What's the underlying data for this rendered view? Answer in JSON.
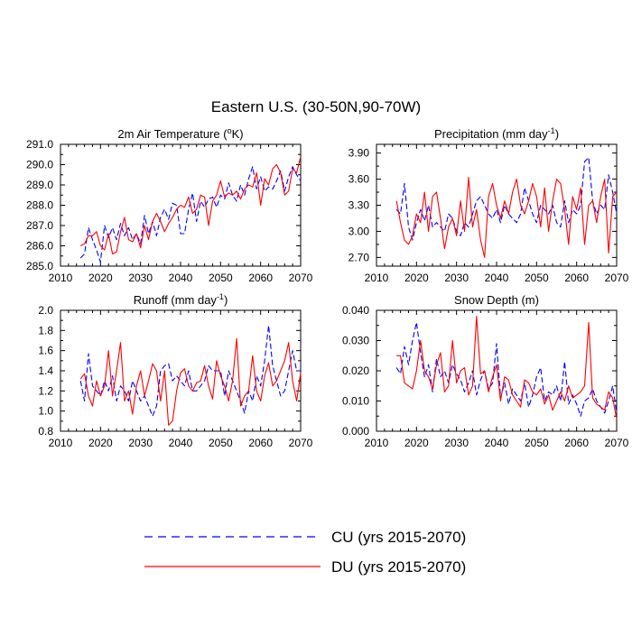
{
  "title": "Eastern U.S. (30-50N,90-70W)",
  "colors": {
    "cu": "#0000ff",
    "du": "#ff0000",
    "axis": "#000000"
  },
  "legend": {
    "cu_label": "CU (yrs 2015-2070)",
    "du_label": "DU (yrs 2015-2070)"
  },
  "chart_data": [
    {
      "id": "air-temp",
      "type": "line",
      "title": "2m Air Temperature (°K)",
      "title_parts": [
        "2m Air Temperature (",
        "o",
        "K)"
      ],
      "xlim": [
        2010,
        2070
      ],
      "ylim": [
        285.0,
        291.0
      ],
      "xticks": [
        2010,
        2020,
        2030,
        2040,
        2050,
        2060,
        2070
      ],
      "yticks": [
        285.0,
        286.0,
        287.0,
        288.0,
        289.0,
        290.0,
        291.0
      ],
      "ytick_labels": [
        "285.0",
        "286.0",
        "287.0",
        "288.0",
        "289.0",
        "290.0",
        "291.0"
      ],
      "x": [
        2015,
        2016,
        2017,
        2018,
        2019,
        2020,
        2021,
        2022,
        2023,
        2024,
        2025,
        2026,
        2027,
        2028,
        2029,
        2030,
        2031,
        2032,
        2033,
        2034,
        2035,
        2036,
        2037,
        2038,
        2039,
        2040,
        2041,
        2042,
        2043,
        2044,
        2045,
        2046,
        2047,
        2048,
        2049,
        2050,
        2051,
        2052,
        2053,
        2054,
        2055,
        2056,
        2057,
        2058,
        2059,
        2060,
        2061,
        2062,
        2063,
        2064,
        2065,
        2066,
        2067,
        2068,
        2069,
        2070
      ],
      "series": [
        {
          "name": "CU",
          "values": [
            285.4,
            285.6,
            286.9,
            286.3,
            285.8,
            285.2,
            287.0,
            286.4,
            286.9,
            286.3,
            287.1,
            286.5,
            286.9,
            286.3,
            286.6,
            286.1,
            287.5,
            286.6,
            287.2,
            286.5,
            287.4,
            287.8,
            287.3,
            288.1,
            288.0,
            286.6,
            286.6,
            287.8,
            288.6,
            287.2,
            288.2,
            287.9,
            288.3,
            288.4,
            287.9,
            288.5,
            288.3,
            289.1,
            288.5,
            288.2,
            289.0,
            288.5,
            289.3,
            289.9,
            288.8,
            289.4,
            288.7,
            288.9,
            288.8,
            289.2,
            289.7,
            288.7,
            289.4,
            289.9,
            289.5,
            289.2
          ]
        },
        {
          "name": "DU",
          "values": [
            286.0,
            286.1,
            286.5,
            286.5,
            286.7,
            286.0,
            285.8,
            286.6,
            285.6,
            285.7,
            286.7,
            287.4,
            286.3,
            286.2,
            286.6,
            285.9,
            287.0,
            286.3,
            287.2,
            287.6,
            287.2,
            286.7,
            287.1,
            287.4,
            287.8,
            288.0,
            287.9,
            288.4,
            287.6,
            287.8,
            288.5,
            288.4,
            287.0,
            288.2,
            288.5,
            289.2,
            288.4,
            288.6,
            288.5,
            288.7,
            288.3,
            288.8,
            289.0,
            288.9,
            289.6,
            288.0,
            289.3,
            289.0,
            289.8,
            290.0,
            289.6,
            288.5,
            288.7,
            289.8,
            289.6,
            290.4
          ]
        }
      ]
    },
    {
      "id": "precipitation",
      "type": "line",
      "title": "Precipitation (mm day-1)",
      "title_parts": [
        "Precipitation (mm day",
        "-1",
        ")"
      ],
      "xlim": [
        2010,
        2070
      ],
      "ylim": [
        2.6,
        4.0
      ],
      "xticks": [
        2010,
        2020,
        2030,
        2040,
        2050,
        2060,
        2070
      ],
      "yticks": [
        2.7,
        3.0,
        3.3,
        3.6,
        3.9
      ],
      "ytick_labels": [
        "2.70",
        "3.00",
        "3.30",
        "3.60",
        "3.90"
      ],
      "x": [
        2015,
        2016,
        2017,
        2018,
        2019,
        2020,
        2021,
        2022,
        2023,
        2024,
        2025,
        2026,
        2027,
        2028,
        2029,
        2030,
        2031,
        2032,
        2033,
        2034,
        2035,
        2036,
        2037,
        2038,
        2039,
        2040,
        2041,
        2042,
        2043,
        2044,
        2045,
        2046,
        2047,
        2048,
        2049,
        2050,
        2051,
        2052,
        2053,
        2054,
        2055,
        2056,
        2057,
        2058,
        2059,
        2060,
        2061,
        2062,
        2063,
        2064,
        2065,
        2066,
        2067,
        2068,
        2069,
        2070
      ],
      "series": [
        {
          "name": "CU",
          "values": [
            3.25,
            3.2,
            3.55,
            3.05,
            2.9,
            3.1,
            3.25,
            3.12,
            3.3,
            3.05,
            3.1,
            3.05,
            3.0,
            3.2,
            3.15,
            3.0,
            2.95,
            3.1,
            3.05,
            3.2,
            3.35,
            3.4,
            3.3,
            3.2,
            3.15,
            3.25,
            3.1,
            3.3,
            3.2,
            3.15,
            3.1,
            3.2,
            3.5,
            3.35,
            3.2,
            3.1,
            3.3,
            3.25,
            3.2,
            3.3,
            3.1,
            3.05,
            3.35,
            3.1,
            3.25,
            3.2,
            3.3,
            3.8,
            3.85,
            3.35,
            3.2,
            3.3,
            3.25,
            3.65,
            3.45,
            3.2
          ]
        },
        {
          "name": "DU",
          "values": [
            3.35,
            3.1,
            2.9,
            2.85,
            2.95,
            3.2,
            3.1,
            3.45,
            3.0,
            3.4,
            3.45,
            3.15,
            2.8,
            3.05,
            3.15,
            2.95,
            3.35,
            3.0,
            3.62,
            3.05,
            3.25,
            2.9,
            2.7,
            3.4,
            3.55,
            3.3,
            3.15,
            3.35,
            3.2,
            3.45,
            3.6,
            3.3,
            3.2,
            3.35,
            3.55,
            3.4,
            3.05,
            3.5,
            3.0,
            3.35,
            3.6,
            3.55,
            3.25,
            2.85,
            3.4,
            3.25,
            3.5,
            2.85,
            3.3,
            3.35,
            3.1,
            3.4,
            3.6,
            2.75,
            3.4,
            3.45
          ]
        }
      ]
    },
    {
      "id": "runoff",
      "type": "line",
      "title": "Runoff (mm day-1)",
      "title_parts": [
        "Runoff (mm day",
        "-1",
        ")"
      ],
      "xlim": [
        2010,
        2070
      ],
      "ylim": [
        0.8,
        2.0
      ],
      "xticks": [
        2010,
        2020,
        2030,
        2040,
        2050,
        2060,
        2070
      ],
      "yticks": [
        0.8,
        1.0,
        1.2,
        1.4,
        1.6,
        1.8,
        2.0
      ],
      "ytick_labels": [
        "0.8",
        "1.0",
        "1.2",
        "1.4",
        "1.6",
        "1.8",
        "2.0"
      ],
      "x": [
        2015,
        2016,
        2017,
        2018,
        2019,
        2020,
        2021,
        2022,
        2023,
        2024,
        2025,
        2026,
        2027,
        2028,
        2029,
        2030,
        2031,
        2032,
        2033,
        2034,
        2035,
        2036,
        2037,
        2038,
        2039,
        2040,
        2041,
        2042,
        2043,
        2044,
        2045,
        2046,
        2047,
        2048,
        2049,
        2050,
        2051,
        2052,
        2053,
        2054,
        2055,
        2056,
        2057,
        2058,
        2059,
        2060,
        2061,
        2062,
        2063,
        2064,
        2065,
        2066,
        2067,
        2068,
        2069,
        2070
      ],
      "series": [
        {
          "name": "CU",
          "values": [
            1.3,
            1.1,
            1.57,
            1.25,
            1.2,
            1.15,
            1.3,
            1.2,
            1.35,
            1.1,
            1.25,
            1.2,
            1.1,
            1.3,
            1.2,
            1.1,
            1.15,
            1.05,
            0.95,
            1.05,
            1.4,
            1.45,
            1.47,
            1.3,
            1.35,
            1.3,
            1.25,
            1.4,
            1.2,
            1.2,
            1.25,
            1.3,
            1.45,
            1.4,
            1.4,
            1.4,
            1.15,
            1.4,
            1.3,
            1.2,
            1.1,
            0.98,
            1.2,
            1.1,
            1.35,
            1.25,
            1.5,
            1.85,
            1.45,
            1.3,
            1.15,
            1.2,
            1.4,
            1.6,
            1.4,
            1.4
          ]
        },
        {
          "name": "DU",
          "values": [
            1.32,
            1.37,
            1.15,
            1.05,
            1.3,
            1.15,
            1.25,
            1.6,
            1.15,
            1.4,
            1.68,
            1.1,
            1.2,
            0.97,
            1.25,
            1.4,
            1.15,
            1.3,
            1.47,
            1.4,
            1.1,
            1.4,
            0.86,
            0.9,
            1.2,
            1.38,
            1.42,
            1.25,
            1.2,
            1.28,
            1.3,
            1.45,
            1.25,
            1.12,
            1.5,
            1.35,
            1.25,
            1.1,
            1.3,
            1.72,
            1.05,
            1.15,
            1.2,
            1.55,
            1.2,
            1.1,
            1.35,
            1.48,
            1.25,
            1.3,
            1.4,
            1.5,
            1.68,
            1.3,
            1.1,
            1.38
          ]
        }
      ]
    },
    {
      "id": "snow-depth",
      "type": "line",
      "title": "Snow Depth (m)",
      "title_parts": [
        "Snow Depth (m)",
        "",
        ""
      ],
      "xlim": [
        2010,
        2070
      ],
      "ylim": [
        0.0,
        0.04
      ],
      "xticks": [
        2010,
        2020,
        2030,
        2040,
        2050,
        2060,
        2070
      ],
      "yticks": [
        0.0,
        0.01,
        0.02,
        0.03,
        0.04
      ],
      "ytick_labels": [
        "0.000",
        "0.010",
        "0.020",
        "0.030",
        "0.040"
      ],
      "x": [
        2015,
        2016,
        2017,
        2018,
        2019,
        2020,
        2021,
        2022,
        2023,
        2024,
        2025,
        2026,
        2027,
        2028,
        2029,
        2030,
        2031,
        2032,
        2033,
        2034,
        2035,
        2036,
        2037,
        2038,
        2039,
        2040,
        2041,
        2042,
        2043,
        2044,
        2045,
        2046,
        2047,
        2048,
        2049,
        2050,
        2051,
        2052,
        2053,
        2054,
        2055,
        2056,
        2057,
        2058,
        2059,
        2060,
        2061,
        2062,
        2063,
        2064,
        2065,
        2066,
        2067,
        2068,
        2069,
        2070
      ],
      "series": [
        {
          "name": "CU",
          "values": [
            0.021,
            0.019,
            0.028,
            0.022,
            0.03,
            0.036,
            0.026,
            0.018,
            0.022,
            0.013,
            0.024,
            0.018,
            0.02,
            0.016,
            0.022,
            0.019,
            0.017,
            0.013,
            0.016,
            0.02,
            0.012,
            0.017,
            0.02,
            0.014,
            0.016,
            0.029,
            0.011,
            0.016,
            0.009,
            0.014,
            0.012,
            0.01,
            0.016,
            0.008,
            0.012,
            0.018,
            0.021,
            0.01,
            0.013,
            0.012,
            0.015,
            0.01,
            0.023,
            0.009,
            0.012,
            0.009,
            0.005,
            0.01,
            0.011,
            0.014,
            0.01,
            0.008,
            0.006,
            0.01,
            0.015,
            0.006
          ]
        },
        {
          "name": "DU",
          "values": [
            0.025,
            0.025,
            0.016,
            0.015,
            0.014,
            0.02,
            0.03,
            0.02,
            0.018,
            0.014,
            0.022,
            0.026,
            0.013,
            0.015,
            0.03,
            0.016,
            0.02,
            0.021,
            0.012,
            0.015,
            0.038,
            0.019,
            0.02,
            0.013,
            0.018,
            0.022,
            0.01,
            0.018,
            0.017,
            0.012,
            0.01,
            0.008,
            0.017,
            0.016,
            0.013,
            0.012,
            0.014,
            0.009,
            0.012,
            0.007,
            0.01,
            0.013,
            0.01,
            0.015,
            0.011,
            0.012,
            0.013,
            0.015,
            0.036,
            0.011,
            0.009,
            0.008,
            0.007,
            0.013,
            0.011,
            0.004
          ]
        }
      ]
    }
  ]
}
